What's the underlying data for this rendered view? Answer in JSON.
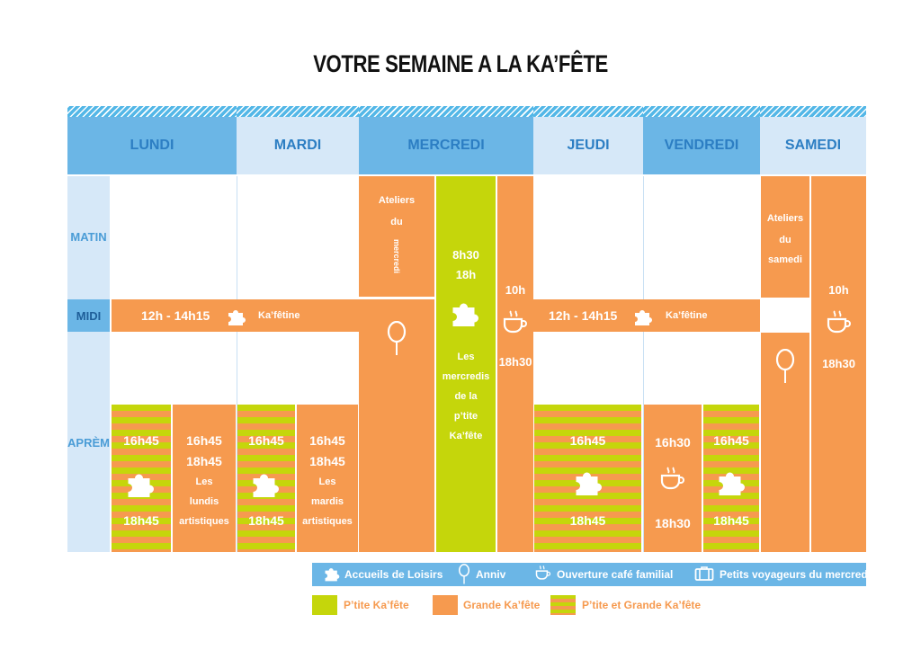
{
  "title": "VOTRE SEMAINE A LA KA’FÊTE",
  "days": {
    "lundi": "LUNDI",
    "mardi": "MARDI",
    "mercredi": "MERCREDI",
    "jeudi": "JEUDI",
    "vendredi": "VENDREDI",
    "samedi": "SAMEDI"
  },
  "rows": {
    "matin": "MATIN",
    "midi": "MIDI",
    "apres": "APRÈM"
  },
  "midi_time": "12h - 14h15",
  "kafetine": "Ka’fêtine",
  "t1645": "16h45",
  "t1845": "18h45",
  "t1630": "16h30",
  "t1830": "18h30",
  "t830": "8h30",
  "t18": "18h",
  "t10h": "10h",
  "lundis": [
    "Les",
    "lundis",
    "artistiques"
  ],
  "mardis": [
    "Les",
    "mardis",
    "artistiques"
  ],
  "ateliers_mercredi": [
    "Ateliers",
    "du",
    "mercredi"
  ],
  "ateliers_samedi": [
    "Ateliers",
    "du",
    "samedi"
  ],
  "mercredis_ptite": [
    "Les",
    "mercredis",
    "de la",
    "p’tite",
    "Ka’fête"
  ],
  "legend": {
    "accueils": "Accueils de Loisirs",
    "anniv": "Anniv",
    "cafe": "Ouverture café familial",
    "voyageurs": "Petits voyageurs du mercredi",
    "ptite": "P’tite Ka’fête",
    "grande": "Grande Ka’fête",
    "both": "P’tite et Grande Ka’fête"
  },
  "colors": {
    "orange": "#f69a4f",
    "green": "#c5d60b",
    "blue_dark": "#6bb6e6",
    "blue_light": "#d6e8f8",
    "text_blue": "#2c7ec3"
  },
  "icons": [
    "puzzle-icon",
    "balloon-icon",
    "coffee-cup-icon",
    "suitcase-icon"
  ]
}
